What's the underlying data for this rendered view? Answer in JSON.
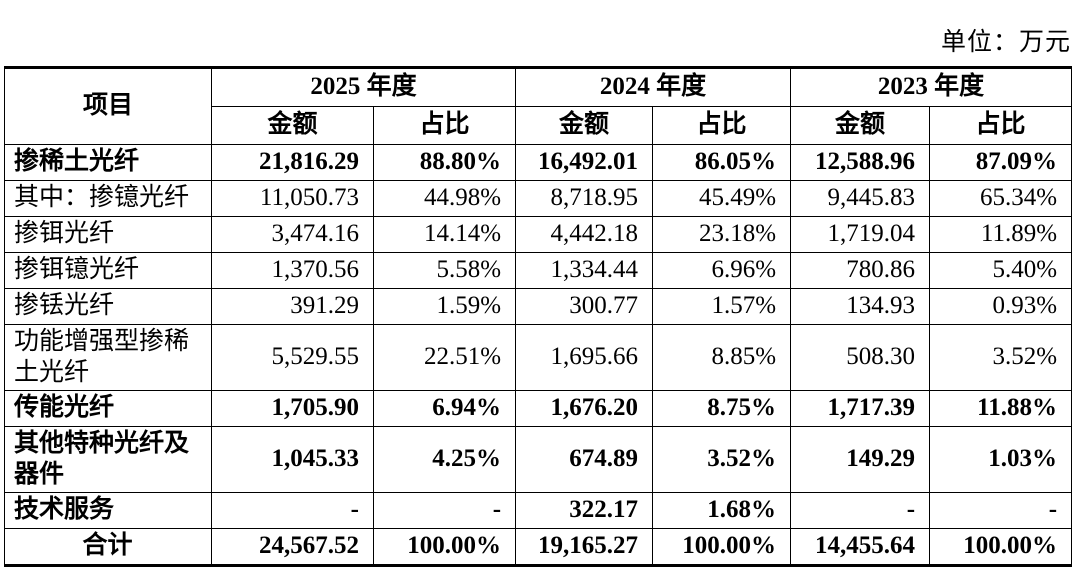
{
  "page": {
    "unit_label": "单位：万元"
  },
  "table": {
    "item_header": "项目",
    "year_groups": [
      {
        "year": "2025 年度",
        "amount_label": "金额",
        "ratio_label": "占比"
      },
      {
        "year": "2024 年度",
        "amount_label": "金额",
        "ratio_label": "占比"
      },
      {
        "year": "2023 年度",
        "amount_label": "金额",
        "ratio_label": "占比"
      }
    ],
    "rows": [
      {
        "label": "掺稀土光纤",
        "bold": true,
        "center": false,
        "values": [
          "21,816.29",
          "88.80%",
          "16,492.01",
          "86.05%",
          "12,588.96",
          "87.09%"
        ]
      },
      {
        "label": "其中：掺镱光纤",
        "bold": false,
        "center": false,
        "values": [
          "11,050.73",
          "44.98%",
          "8,718.95",
          "45.49%",
          "9,445.83",
          "65.34%"
        ]
      },
      {
        "label": "掺铒光纤",
        "bold": false,
        "center": false,
        "values": [
          "3,474.16",
          "14.14%",
          "4,442.18",
          "23.18%",
          "1,719.04",
          "11.89%"
        ]
      },
      {
        "label": "掺铒镱光纤",
        "bold": false,
        "center": false,
        "values": [
          "1,370.56",
          "5.58%",
          "1,334.44",
          "6.96%",
          "780.86",
          "5.40%"
        ]
      },
      {
        "label": "掺铥光纤",
        "bold": false,
        "center": false,
        "values": [
          "391.29",
          "1.59%",
          "300.77",
          "1.57%",
          "134.93",
          "0.93%"
        ]
      },
      {
        "label": "功能增强型掺稀土光纤",
        "bold": false,
        "center": false,
        "values": [
          "5,529.55",
          "22.51%",
          "1,695.66",
          "8.85%",
          "508.30",
          "3.52%"
        ]
      },
      {
        "label": "传能光纤",
        "bold": true,
        "center": false,
        "values": [
          "1,705.90",
          "6.94%",
          "1,676.20",
          "8.75%",
          "1,717.39",
          "11.88%"
        ]
      },
      {
        "label": "其他特种光纤及器件",
        "bold": true,
        "center": false,
        "values": [
          "1,045.33",
          "4.25%",
          "674.89",
          "3.52%",
          "149.29",
          "1.03%"
        ]
      },
      {
        "label": "技术服务",
        "bold": true,
        "center": false,
        "values": [
          "-",
          "-",
          "322.17",
          "1.68%",
          "-",
          "-"
        ]
      },
      {
        "label": "合计",
        "bold": true,
        "center": true,
        "values": [
          "24,567.52",
          "100.00%",
          "19,165.27",
          "100.00%",
          "14,455.64",
          "100.00%"
        ]
      }
    ]
  }
}
